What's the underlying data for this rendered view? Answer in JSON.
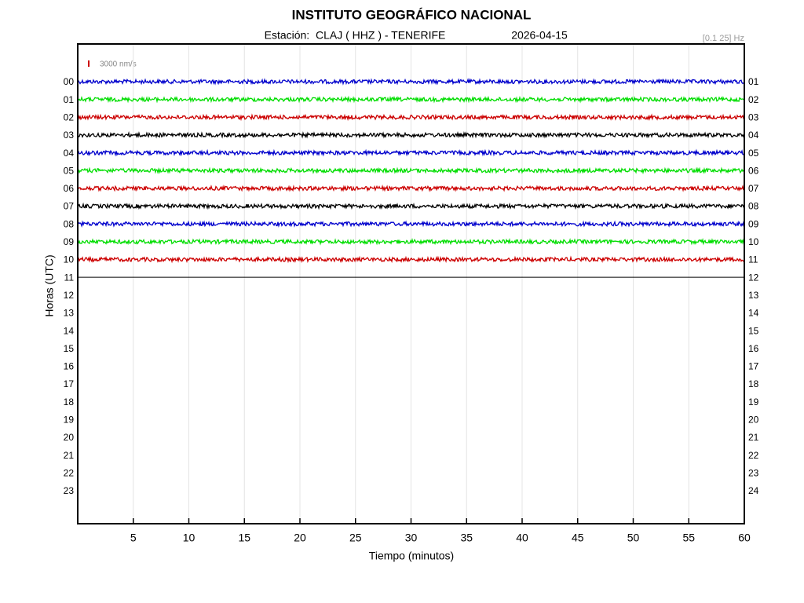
{
  "chart_data": {
    "type": "helicorder",
    "title": "INSTITUTO GEOGRÁFICO NACIONAL",
    "subtitle": "Estación:  CLAJ ( HHZ ) - TENERIFE",
    "date": "2026-04-15",
    "filter": "[0.1 25] Hz",
    "scale_label": "3000 nm/s",
    "xlabel": "Tiempo (minutos)",
    "ylabel": "Horas (UTC)",
    "xlim": [
      0,
      60
    ],
    "xticks": [
      5,
      10,
      15,
      20,
      25,
      30,
      35,
      40,
      45,
      50,
      55,
      60
    ],
    "grid": true,
    "hours_left": [
      "00",
      "01",
      "02",
      "03",
      "04",
      "05",
      "06",
      "07",
      "08",
      "09",
      "10",
      "11",
      "12",
      "13",
      "14",
      "15",
      "16",
      "17",
      "18",
      "19",
      "20",
      "21",
      "22",
      "23"
    ],
    "hours_right": [
      "01",
      "02",
      "03",
      "04",
      "05",
      "06",
      "07",
      "08",
      "09",
      "10",
      "11",
      "12",
      "13",
      "14",
      "15",
      "16",
      "17",
      "18",
      "19",
      "20",
      "21",
      "22",
      "23",
      "24"
    ],
    "traces": [
      {
        "color": "#0000cc"
      },
      {
        "color": "#00dd00"
      },
      {
        "color": "#cc0000"
      },
      {
        "color": "#000000"
      },
      {
        "color": "#0000cc"
      },
      {
        "color": "#00dd00"
      },
      {
        "color": "#cc0000"
      },
      {
        "color": "#000000"
      },
      {
        "color": "#0000cc"
      },
      {
        "color": "#00dd00"
      },
      {
        "color": "#cc0000"
      }
    ]
  }
}
